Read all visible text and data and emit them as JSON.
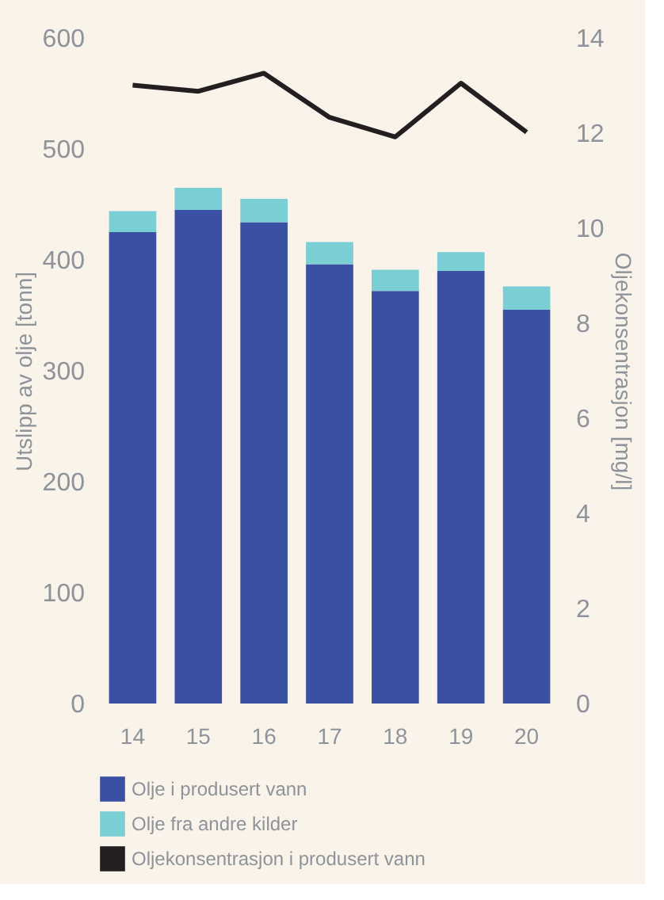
{
  "chart_data": {
    "type": "bar",
    "stacked": true,
    "categories": [
      "14",
      "15",
      "16",
      "17",
      "18",
      "19",
      "20"
    ],
    "series": [
      {
        "name": "Olje i produsert vann",
        "color": "#3a51a3",
        "values": [
          425,
          445,
          434,
          396,
          372,
          390,
          355
        ]
      },
      {
        "name": "Olje fra andre kilder",
        "color": "#79cfd4",
        "values": [
          19,
          20,
          21,
          20,
          19,
          17,
          21
        ]
      },
      {
        "name": "Oljekonsentrasjon i produsert vann",
        "color": "#231f20",
        "type": "line",
        "axis": "y2",
        "line_style": "solid",
        "values": [
          13.01,
          12.88,
          13.26,
          12.33,
          11.92,
          13.05,
          12.02
        ]
      }
    ],
    "ylabel": "Utslipp av olje [tonn]",
    "y2label": "Oljekonsentrasjon [mg/l]",
    "ylim": [
      0,
      600
    ],
    "yticks": [
      0,
      100,
      200,
      300,
      400,
      500,
      600
    ],
    "y2lim": [
      0,
      14
    ],
    "y2ticks": [
      0,
      2,
      4,
      6,
      8,
      10,
      12,
      14
    ],
    "grid": false,
    "legend": "bottom"
  }
}
